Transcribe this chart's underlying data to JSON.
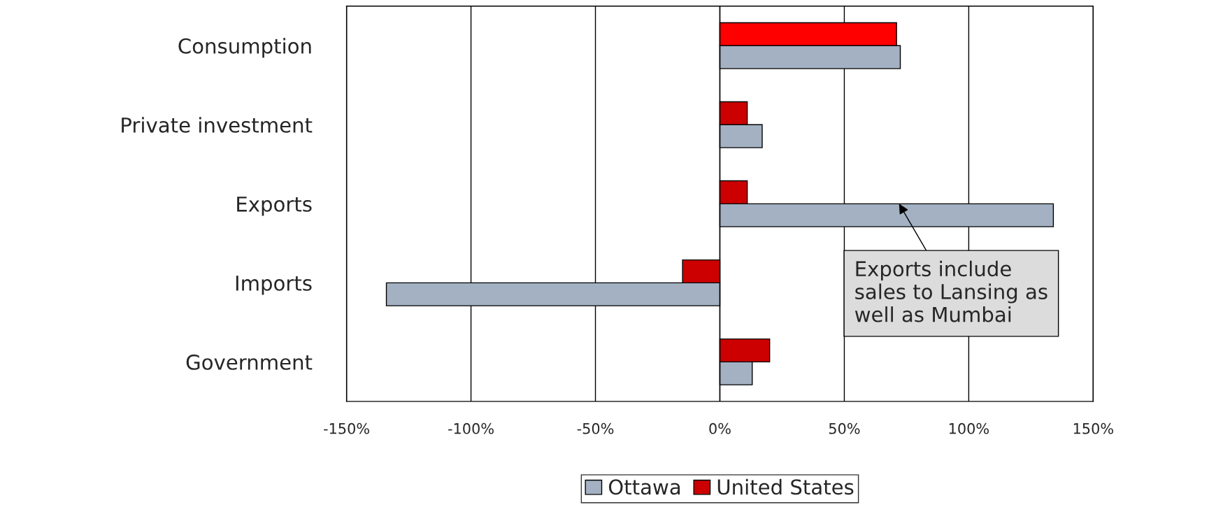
{
  "chart_data": {
    "type": "bar",
    "orientation": "horizontal",
    "categories": [
      "Consumption",
      "Private investment",
      "Exports",
      "Imports",
      "Government"
    ],
    "series": [
      {
        "name": "Ottawa",
        "color": "#a3b1c2",
        "values": [
          72.5,
          17,
          134,
          -134,
          13
        ]
      },
      {
        "name": "United States",
        "color": "#cc0000",
        "colors": [
          "#ff0000",
          "#cc0000",
          "#cc0000",
          "#cc0000",
          "#cc0000"
        ],
        "values": [
          71,
          11,
          11,
          -15,
          20
        ]
      }
    ],
    "xlim": [
      -150,
      150
    ],
    "xticks": [
      {
        "value": -150,
        "label": "-150%"
      },
      {
        "value": -100,
        "label": "-100%"
      },
      {
        "value": -50,
        "label": "-50%"
      },
      {
        "value": 0,
        "label": "0%"
      },
      {
        "value": 50,
        "label": "50%"
      },
      {
        "value": 100,
        "label": "100%"
      },
      {
        "value": 150,
        "label": "150%"
      }
    ],
    "grid": "x",
    "legend": "bottom",
    "annotations": [
      {
        "text": "Exports include\nsales to Lansing as\nwell as Mumbai",
        "x": 72,
        "y": "Exports"
      }
    ]
  }
}
